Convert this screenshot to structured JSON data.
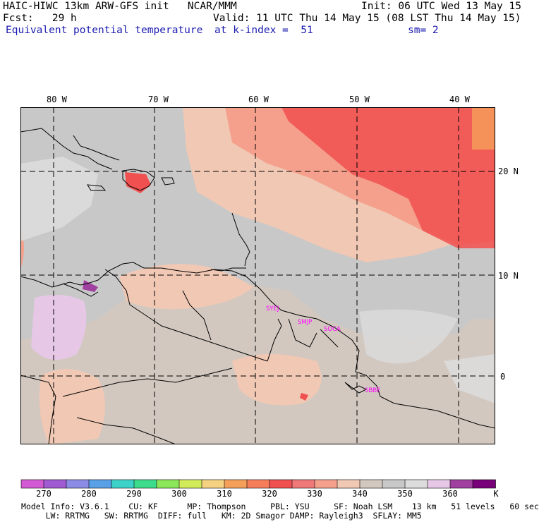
{
  "header": {
    "model_line": "HAIC-HIWC 13km ARW-GFS init   NCAR/MMM",
    "init_line": "Init: 06 UTC Wed 13 May 15",
    "fcst_line": "Fcst:   29 h",
    "valid_line": "Valid: 11 UTC Thu 14 May 15 (08 LST Thu 14 May 15)",
    "field_line": "Equivalent potential temperature",
    "level_line": "at k-index =  51",
    "smooth_line": "sm= 2"
  },
  "map": {
    "lon_labels": [
      "80 W",
      "70 W",
      "60 W",
      "50 W",
      "40 W"
    ],
    "lat_labels": [
      "20 N",
      "10 N",
      "0"
    ],
    "stations": [
      "SYEJ",
      "SMJP",
      "SOCA",
      "SBBE"
    ]
  },
  "colorbar": {
    "colors": [
      "#d25ad2",
      "#a05ad2",
      "#8c8ce6",
      "#5aa0e6",
      "#3cd2c8",
      "#3cdc8c",
      "#8ce65a",
      "#d2eb5a",
      "#f5d282",
      "#f5a05a",
      "#f57d5a",
      "#f05050",
      "#f07878",
      "#f5a08c",
      "#f0c8b4",
      "#d2c8c0",
      "#c8c8c8",
      "#dcdcdc",
      "#e6c8e6",
      "#a040a0",
      "#780078"
    ],
    "ticks": [
      "270",
      "280",
      "290",
      "300",
      "310",
      "320",
      "330",
      "340",
      "350",
      "360"
    ],
    "unit": "K"
  },
  "footer": {
    "line1": "Model Info: V3.6.1    CU: KF      MP: Thompson     PBL: YSU     SF: Noah LSM    13 km   51 levels   60 sec",
    "line2": "     LW: RRTMG   SW: RRTMG  DIFF: full   KM: 2D Smagor DAMP: Rayleigh3  SFLAY: MM5"
  }
}
